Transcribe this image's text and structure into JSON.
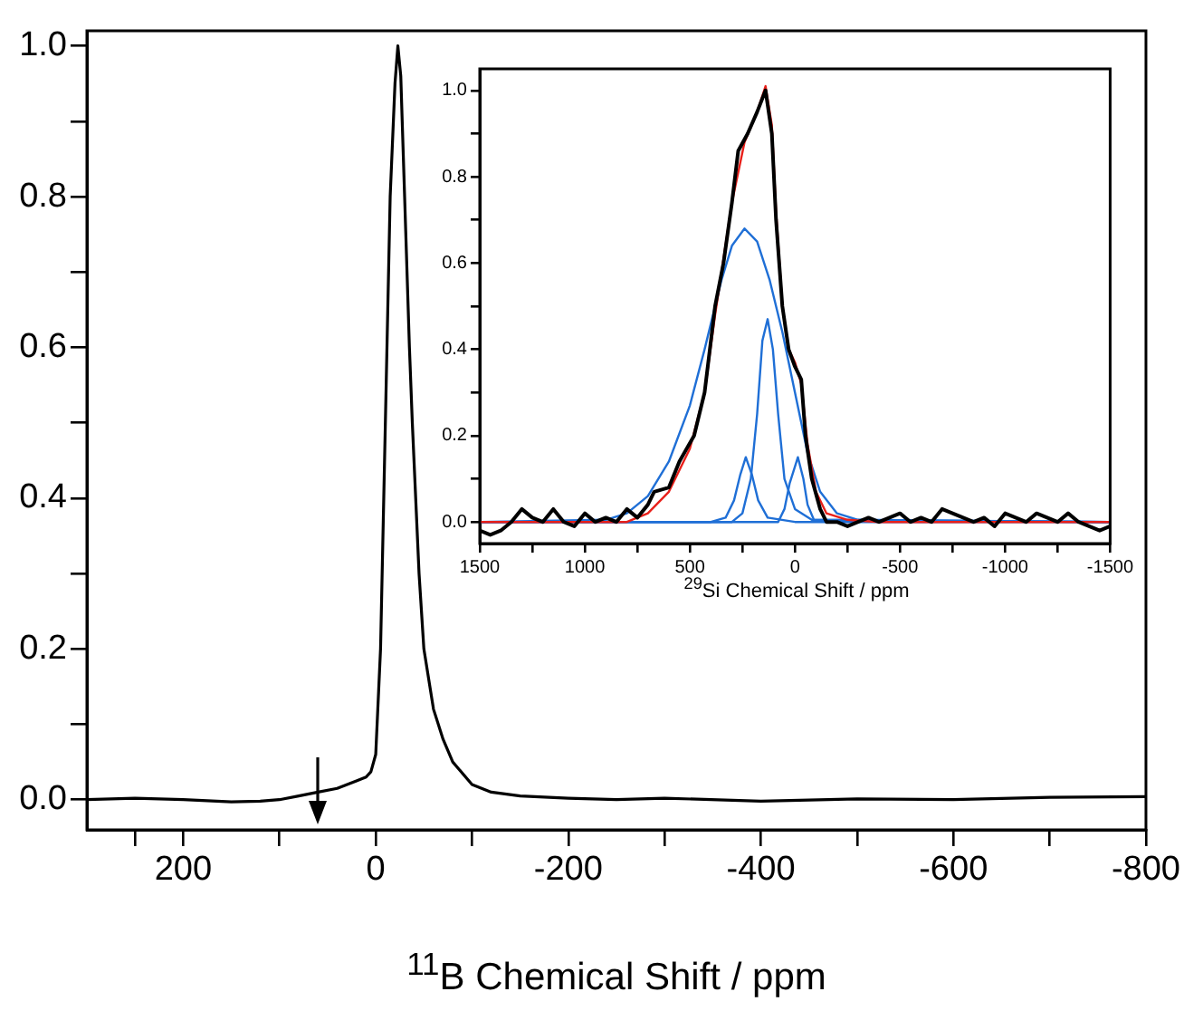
{
  "chart_data": [
    {
      "type": "line",
      "xlabel": "$^{11}$B Chemical Shift / ppm",
      "xlim": [
        300,
        -800
      ],
      "ylim": [
        -0.04,
        1.02
      ],
      "xticks": [
        {
          "value": 250,
          "label": null
        },
        200,
        {
          "value": 100,
          "label": null
        },
        0,
        {
          "value": -100,
          "label": null
        },
        -200,
        {
          "value": -300,
          "label": null
        },
        -400,
        {
          "value": -500,
          "label": null
        },
        -600,
        {
          "value": -700,
          "label": null
        },
        -800
      ],
      "yticks": [
        {
          "value": 0,
          "label": "0.0"
        },
        {
          "value": 0.1,
          "label": null
        },
        {
          "value": 0.2,
          "label": "0.2"
        },
        {
          "value": 0.3,
          "label": null
        },
        {
          "value": 0.4,
          "label": "0.4"
        },
        {
          "value": 0.5,
          "label": null
        },
        {
          "value": 0.6,
          "label": "0.6"
        },
        {
          "value": 0.7,
          "label": null
        },
        {
          "value": 0.8,
          "label": "0.8"
        },
        {
          "value": 0.9,
          "label": null
        },
        {
          "value": 1,
          "label": "1.0"
        }
      ],
      "series": [
        {
          "color": "#000000",
          "x": [
            300,
            250,
            200,
            150,
            120,
            100,
            80,
            60,
            40,
            20,
            10,
            5,
            0,
            -5,
            -10,
            -15,
            -20,
            -23,
            -26,
            -30,
            -35,
            -38,
            -45,
            -50,
            -60,
            -70,
            -80,
            -100,
            -120,
            -150,
            -200,
            -250,
            -300,
            -400,
            -500,
            -600,
            -700,
            -800
          ],
          "values": [
            0,
            0.002,
            0,
            -0.003,
            -0.002,
            0,
            0.005,
            0.01,
            0.015,
            0.025,
            0.03,
            0.037,
            0.06,
            0.2,
            0.5,
            0.8,
            0.95,
            1,
            0.96,
            0.8,
            0.6,
            0.5,
            0.3,
            0.2,
            0.12,
            0.08,
            0.05,
            0.02,
            0.01,
            0.005,
            0.002,
            0,
            0.002,
            -0.002,
            0.001,
            0,
            0.003,
            0.004
          ]
        }
      ]
    },
    {
      "type": "line",
      "xlabel": "$^{29}$Si Chemical Shift / ppm",
      "xlim": [
        1500,
        -1500
      ],
      "ylim": [
        -0.05,
        1.05
      ],
      "xticks": [
        1500,
        {
          "value": 1250,
          "label": null
        },
        1000,
        {
          "value": 750,
          "label": null
        },
        500,
        {
          "value": 250,
          "label": null
        },
        0,
        {
          "value": -250,
          "label": null
        },
        -500,
        {
          "value": -750,
          "label": null
        },
        -1000,
        {
          "value": -1250,
          "label": null
        },
        -1500
      ],
      "yticks": [
        {
          "value": 0,
          "label": "0.0"
        },
        {
          "value": 0.1,
          "label": null
        },
        {
          "value": 0.2,
          "label": "0.2"
        },
        {
          "value": 0.3,
          "label": null
        },
        {
          "value": 0.4,
          "label": "0.4"
        },
        {
          "value": 0.5,
          "label": null
        },
        {
          "value": 0.6,
          "label": "0.6"
        },
        {
          "value": 0.7,
          "label": null
        },
        {
          "value": 0.8,
          "label": "0.8"
        },
        {
          "value": 0.9,
          "label": null
        },
        {
          "value": 1,
          "label": "1.0"
        }
      ],
      "series": [
        {
          "color": "#1f6fd6",
          "x": [
            1500,
            900,
            800,
            700,
            600,
            500,
            430,
            350,
            300,
            240,
            180,
            120,
            60,
            0,
            -60,
            -120,
            -200,
            -300,
            -1500
          ],
          "values": [
            0,
            0.005,
            0.02,
            0.06,
            0.14,
            0.27,
            0.4,
            0.56,
            0.64,
            0.68,
            0.65,
            0.56,
            0.44,
            0.3,
            0.16,
            0.07,
            0.02,
            0.005,
            0
          ]
        },
        {
          "color": "#1f6fd6",
          "x": [
            1500,
            400,
            330,
            290,
            260,
            234,
            205,
            175,
            130,
            0,
            -1500
          ],
          "values": [
            0,
            0,
            0.01,
            0.05,
            0.11,
            0.15,
            0.11,
            0.05,
            0.01,
            0,
            0
          ]
        },
        {
          "color": "#1f6fd6",
          "x": [
            1500,
            300,
            250,
            210,
            180,
            155,
            130,
            105,
            80,
            50,
            0,
            -80,
            -1500
          ],
          "values": [
            0,
            0,
            0.02,
            0.1,
            0.25,
            0.42,
            0.47,
            0.4,
            0.25,
            0.1,
            0.03,
            0.005,
            0
          ]
        },
        {
          "color": "#1f6fd6",
          "x": [
            1500,
            80,
            50,
            25,
            -14,
            -40,
            -60,
            -90,
            -1500
          ],
          "values": [
            0,
            0,
            0.03,
            0.09,
            0.15,
            0.1,
            0.04,
            0.005,
            0
          ]
        },
        {
          "color": "#e8201a",
          "x": [
            1500,
            800,
            700,
            600,
            500,
            430,
            380,
            300,
            240,
            180,
            140,
            110,
            90,
            60,
            30,
            0,
            -30,
            -60,
            -100,
            -150,
            -250,
            -400,
            -1500
          ],
          "values": [
            0,
            0,
            0.02,
            0.07,
            0.17,
            0.3,
            0.48,
            0.74,
            0.88,
            0.95,
            1.01,
            0.92,
            0.72,
            0.5,
            0.4,
            0.37,
            0.32,
            0.18,
            0.07,
            0.02,
            0.005,
            0,
            0
          ]
        },
        {
          "color": "#000000",
          "x": [
            1500,
            1450,
            1400,
            1350,
            1300,
            1250,
            1200,
            1150,
            1100,
            1050,
            1000,
            950,
            900,
            850,
            800,
            750,
            700,
            670,
            600,
            550,
            480,
            430,
            380,
            340,
            300,
            270,
            225,
            180,
            140,
            110,
            90,
            60,
            30,
            0,
            -30,
            -50,
            -80,
            -120,
            -150,
            -200,
            -250,
            -300,
            -350,
            -400,
            -450,
            -500,
            -550,
            -600,
            -650,
            -700,
            -750,
            -800,
            -850,
            -900,
            -950,
            -1000,
            -1050,
            -1100,
            -1150,
            -1200,
            -1250,
            -1300,
            -1350,
            -1400,
            -1450,
            -1500
          ],
          "values": [
            -0.02,
            -0.03,
            -0.02,
            0,
            0.03,
            0.01,
            0,
            0.03,
            0,
            -0.01,
            0.02,
            0,
            0.01,
            0,
            0.03,
            0.01,
            0.04,
            0.07,
            0.08,
            0.14,
            0.2,
            0.3,
            0.5,
            0.6,
            0.74,
            0.86,
            0.9,
            0.95,
            1,
            0.9,
            0.7,
            0.5,
            0.4,
            0.36,
            0.33,
            0.2,
            0.1,
            0.03,
            0,
            0,
            -0.01,
            0,
            0.01,
            0,
            0.01,
            0.02,
            0,
            0.01,
            0,
            0.03,
            0.02,
            0.01,
            0,
            0.01,
            -0.01,
            0.02,
            0.01,
            0,
            0.02,
            0.01,
            0,
            0.02,
            0,
            -0.01,
            -0.02,
            -0.01
          ]
        }
      ]
    }
  ]
}
